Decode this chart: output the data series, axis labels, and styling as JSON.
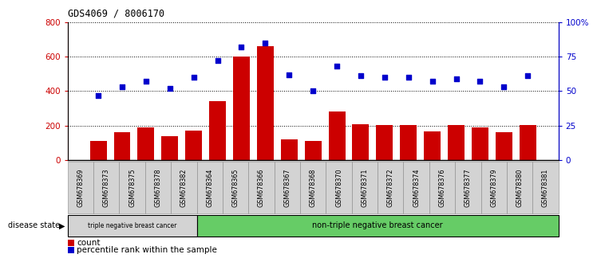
{
  "title": "GDS4069 / 8006170",
  "samples": [
    "GSM678369",
    "GSM678373",
    "GSM678375",
    "GSM678378",
    "GSM678382",
    "GSM678364",
    "GSM678365",
    "GSM678366",
    "GSM678367",
    "GSM678368",
    "GSM678370",
    "GSM678371",
    "GSM678372",
    "GSM678374",
    "GSM678376",
    "GSM678377",
    "GSM678379",
    "GSM678380",
    "GSM678381"
  ],
  "counts": [
    110,
    160,
    190,
    140,
    170,
    340,
    600,
    660,
    120,
    110,
    280,
    210,
    205,
    205,
    165,
    205,
    190,
    160,
    205
  ],
  "percentiles": [
    47,
    53,
    57,
    52,
    60,
    72,
    82,
    85,
    62,
    50,
    68,
    61,
    60,
    60,
    57,
    59,
    57,
    53,
    61
  ],
  "group1_count": 5,
  "group1_label": "triple negative breast cancer",
  "group2_label": "non-triple negative breast cancer",
  "bar_color": "#cc0000",
  "dot_color": "#0000cc",
  "ylim_left": [
    0,
    800
  ],
  "ylim_right": [
    0,
    100
  ],
  "yticks_left": [
    0,
    200,
    400,
    600,
    800
  ],
  "yticks_right": [
    0,
    25,
    50,
    75,
    100
  ],
  "ylabel_left_color": "#cc0000",
  "ylabel_right_color": "#0000cc",
  "grid_color": "black",
  "legend_count_label": "count",
  "legend_pct_label": "percentile rank within the sample",
  "disease_state_label": "disease state",
  "bg_color_plot": "#ffffff",
  "xtick_bg": "#d3d3d3",
  "xtick_border": "#888888",
  "group1_bg": "#d3d3d3",
  "group2_bg": "#66cc66",
  "group_border": "#000000"
}
